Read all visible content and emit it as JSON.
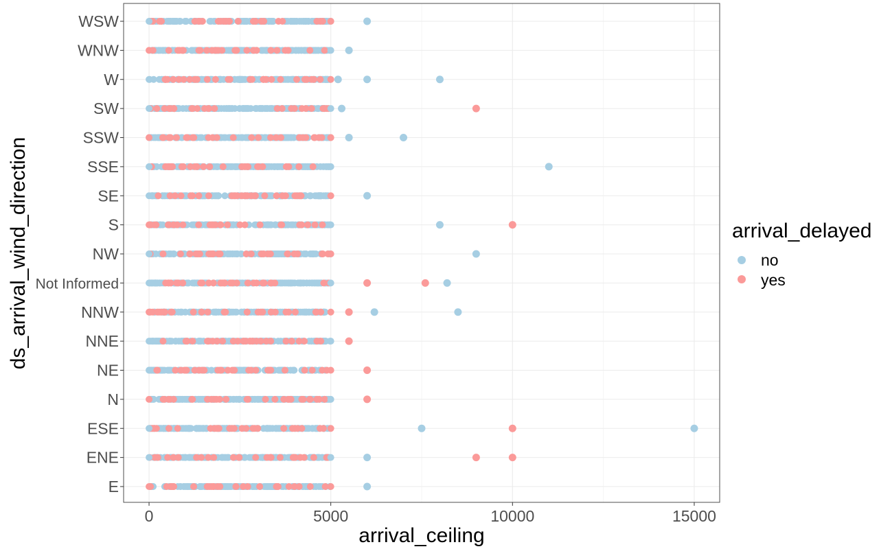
{
  "chart_data": {
    "type": "scatter",
    "title": "",
    "xlabel": "arrival_ceiling",
    "ylabel": "ds_arrival_wind_direction",
    "xlim": [
      -700,
      15700
    ],
    "x_ticks": [
      "0",
      "5000",
      "10000",
      "15000"
    ],
    "x_tick_values": [
      0,
      5000,
      10000,
      15000
    ],
    "categories": [
      "E",
      "ENE",
      "ESE",
      "N",
      "NE",
      "NNE",
      "NNW",
      "Not Informed",
      "NW",
      "S",
      "SE",
      "SSE",
      "SSW",
      "SW",
      "W",
      "WNW",
      "WSW"
    ],
    "grid": true,
    "legend": {
      "title": "arrival_delayed",
      "position": "right",
      "entries": [
        {
          "label": "no",
          "color": "#a6cee3"
        },
        {
          "label": "yes",
          "color": "#fb9a99"
        }
      ]
    },
    "series": [
      {
        "color": "#a6cee3",
        "points": [
          {
            "cat": "WSW",
            "x": 6000
          },
          {
            "cat": "WNW",
            "x": 5500
          },
          {
            "cat": "W",
            "x": 5200
          },
          {
            "cat": "W",
            "x": 6000
          },
          {
            "cat": "W",
            "x": 8000
          },
          {
            "cat": "SW",
            "x": 5300
          },
          {
            "cat": "SSW",
            "x": 5500
          },
          {
            "cat": "SSW",
            "x": 7000
          },
          {
            "cat": "SSE",
            "x": 11000
          },
          {
            "cat": "SE",
            "x": 6000
          },
          {
            "cat": "S",
            "x": 8000
          },
          {
            "cat": "NW",
            "x": 9000
          },
          {
            "cat": "Not Informed",
            "x": 8200
          },
          {
            "cat": "NNW",
            "x": 6200
          },
          {
            "cat": "NNW",
            "x": 8500
          },
          {
            "cat": "ESE",
            "x": 7500
          },
          {
            "cat": "ESE",
            "x": 15000
          },
          {
            "cat": "ENE",
            "x": 6000
          },
          {
            "cat": "E",
            "x": 6000
          }
        ]
      },
      {
        "color": "#fb9a99",
        "points": [
          {
            "cat": "SW",
            "x": 9000
          },
          {
            "cat": "S",
            "x": 10000
          },
          {
            "cat": "Not Informed",
            "x": 6000
          },
          {
            "cat": "Not Informed",
            "x": 7600
          },
          {
            "cat": "NNW",
            "x": 5500
          },
          {
            "cat": "NNE",
            "x": 5500
          },
          {
            "cat": "NE",
            "x": 6000
          },
          {
            "cat": "N",
            "x": 6000
          },
          {
            "cat": "ESE",
            "x": 10000
          },
          {
            "cat": "ENE",
            "x": 9000
          },
          {
            "cat": "ENE",
            "x": 10000
          }
        ]
      }
    ],
    "dense_band": {
      "note": "each category has dense points spread across 0-5000 with both colors",
      "x_range": [
        0,
        5000
      ]
    }
  }
}
